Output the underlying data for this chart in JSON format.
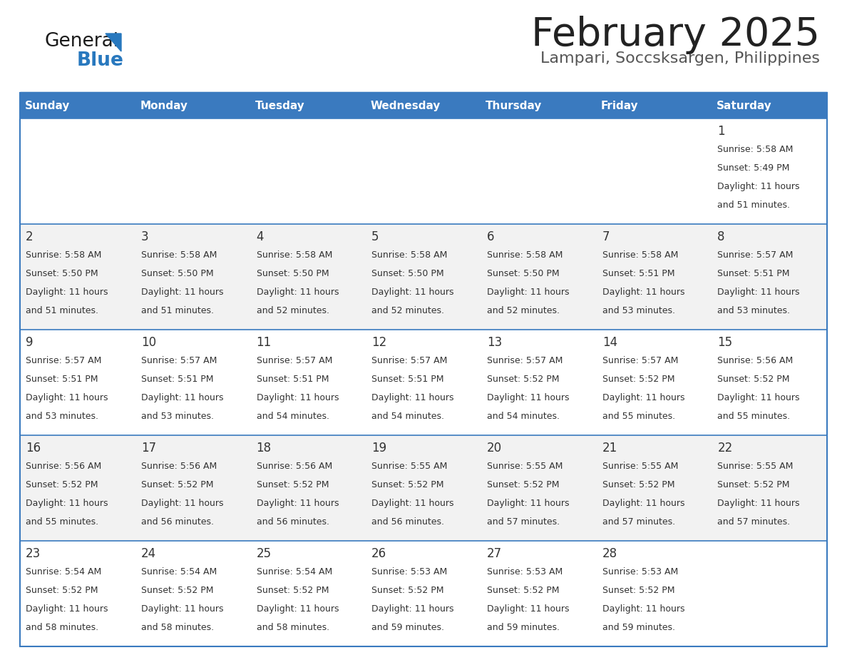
{
  "title": "February 2025",
  "subtitle": "Lampari, Soccsksargen, Philippines",
  "header_bg": "#3a7abf",
  "header_text_color": "#ffffff",
  "cell_bg_white": "#ffffff",
  "cell_bg_gray": "#f2f2f2",
  "day_number_color": "#333333",
  "cell_text_color": "#333333",
  "border_color": "#3a7abf",
  "title_color": "#222222",
  "subtitle_color": "#555555",
  "logo_text_color": "#1a1a1a",
  "logo_blue_color": "#2878be",
  "weekdays": [
    "Sunday",
    "Monday",
    "Tuesday",
    "Wednesday",
    "Thursday",
    "Friday",
    "Saturday"
  ],
  "weeks": [
    [
      {
        "day": null,
        "sunrise": null,
        "sunset": null,
        "daylight": null
      },
      {
        "day": null,
        "sunrise": null,
        "sunset": null,
        "daylight": null
      },
      {
        "day": null,
        "sunrise": null,
        "sunset": null,
        "daylight": null
      },
      {
        "day": null,
        "sunrise": null,
        "sunset": null,
        "daylight": null
      },
      {
        "day": null,
        "sunrise": null,
        "sunset": null,
        "daylight": null
      },
      {
        "day": null,
        "sunrise": null,
        "sunset": null,
        "daylight": null
      },
      {
        "day": 1,
        "sunrise": "5:58 AM",
        "sunset": "5:49 PM",
        "daylight": "11 hours and 51 minutes."
      }
    ],
    [
      {
        "day": 2,
        "sunrise": "5:58 AM",
        "sunset": "5:50 PM",
        "daylight": "11 hours and 51 minutes."
      },
      {
        "day": 3,
        "sunrise": "5:58 AM",
        "sunset": "5:50 PM",
        "daylight": "11 hours and 51 minutes."
      },
      {
        "day": 4,
        "sunrise": "5:58 AM",
        "sunset": "5:50 PM",
        "daylight": "11 hours and 52 minutes."
      },
      {
        "day": 5,
        "sunrise": "5:58 AM",
        "sunset": "5:50 PM",
        "daylight": "11 hours and 52 minutes."
      },
      {
        "day": 6,
        "sunrise": "5:58 AM",
        "sunset": "5:50 PM",
        "daylight": "11 hours and 52 minutes."
      },
      {
        "day": 7,
        "sunrise": "5:58 AM",
        "sunset": "5:51 PM",
        "daylight": "11 hours and 53 minutes."
      },
      {
        "day": 8,
        "sunrise": "5:57 AM",
        "sunset": "5:51 PM",
        "daylight": "11 hours and 53 minutes."
      }
    ],
    [
      {
        "day": 9,
        "sunrise": "5:57 AM",
        "sunset": "5:51 PM",
        "daylight": "11 hours and 53 minutes."
      },
      {
        "day": 10,
        "sunrise": "5:57 AM",
        "sunset": "5:51 PM",
        "daylight": "11 hours and 53 minutes."
      },
      {
        "day": 11,
        "sunrise": "5:57 AM",
        "sunset": "5:51 PM",
        "daylight": "11 hours and 54 minutes."
      },
      {
        "day": 12,
        "sunrise": "5:57 AM",
        "sunset": "5:51 PM",
        "daylight": "11 hours and 54 minutes."
      },
      {
        "day": 13,
        "sunrise": "5:57 AM",
        "sunset": "5:52 PM",
        "daylight": "11 hours and 54 minutes."
      },
      {
        "day": 14,
        "sunrise": "5:57 AM",
        "sunset": "5:52 PM",
        "daylight": "11 hours and 55 minutes."
      },
      {
        "day": 15,
        "sunrise": "5:56 AM",
        "sunset": "5:52 PM",
        "daylight": "11 hours and 55 minutes."
      }
    ],
    [
      {
        "day": 16,
        "sunrise": "5:56 AM",
        "sunset": "5:52 PM",
        "daylight": "11 hours and 55 minutes."
      },
      {
        "day": 17,
        "sunrise": "5:56 AM",
        "sunset": "5:52 PM",
        "daylight": "11 hours and 56 minutes."
      },
      {
        "day": 18,
        "sunrise": "5:56 AM",
        "sunset": "5:52 PM",
        "daylight": "11 hours and 56 minutes."
      },
      {
        "day": 19,
        "sunrise": "5:55 AM",
        "sunset": "5:52 PM",
        "daylight": "11 hours and 56 minutes."
      },
      {
        "day": 20,
        "sunrise": "5:55 AM",
        "sunset": "5:52 PM",
        "daylight": "11 hours and 57 minutes."
      },
      {
        "day": 21,
        "sunrise": "5:55 AM",
        "sunset": "5:52 PM",
        "daylight": "11 hours and 57 minutes."
      },
      {
        "day": 22,
        "sunrise": "5:55 AM",
        "sunset": "5:52 PM",
        "daylight": "11 hours and 57 minutes."
      }
    ],
    [
      {
        "day": 23,
        "sunrise": "5:54 AM",
        "sunset": "5:52 PM",
        "daylight": "11 hours and 58 minutes."
      },
      {
        "day": 24,
        "sunrise": "5:54 AM",
        "sunset": "5:52 PM",
        "daylight": "11 hours and 58 minutes."
      },
      {
        "day": 25,
        "sunrise": "5:54 AM",
        "sunset": "5:52 PM",
        "daylight": "11 hours and 58 minutes."
      },
      {
        "day": 26,
        "sunrise": "5:53 AM",
        "sunset": "5:52 PM",
        "daylight": "11 hours and 59 minutes."
      },
      {
        "day": 27,
        "sunrise": "5:53 AM",
        "sunset": "5:52 PM",
        "daylight": "11 hours and 59 minutes."
      },
      {
        "day": 28,
        "sunrise": "5:53 AM",
        "sunset": "5:52 PM",
        "daylight": "11 hours and 59 minutes."
      },
      {
        "day": null,
        "sunrise": null,
        "sunset": null,
        "daylight": null
      }
    ]
  ]
}
